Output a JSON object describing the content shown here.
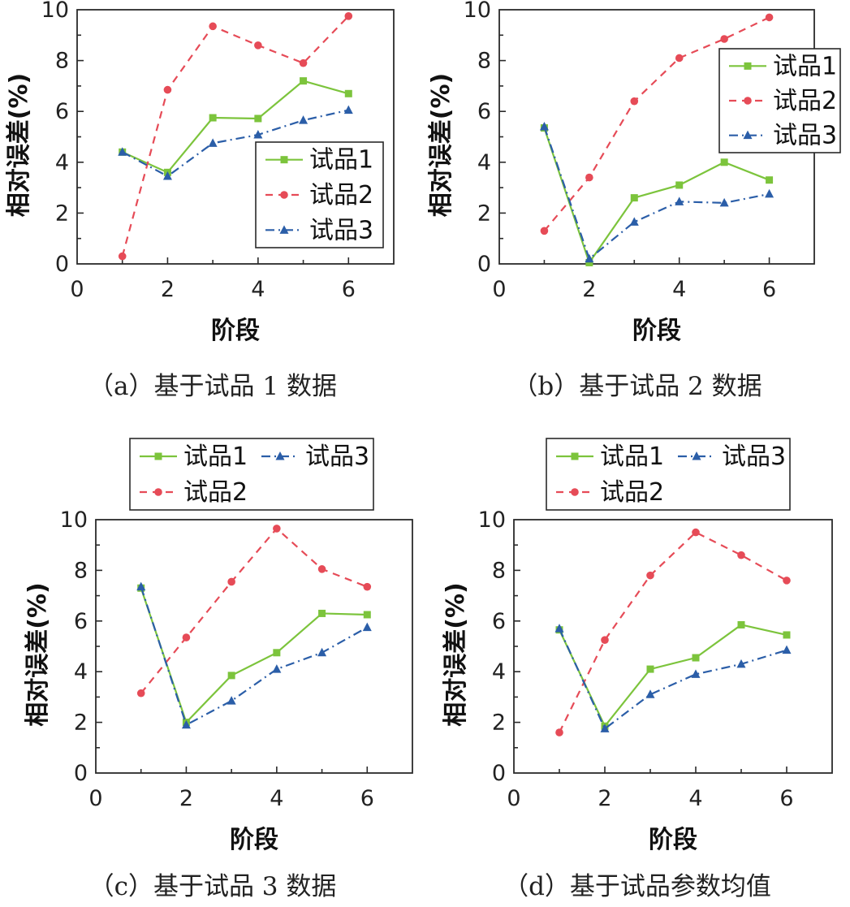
{
  "chart_data": [
    {
      "type": "line",
      "caption": "（a）基于试品 1 数据",
      "xlabel": "阶段",
      "ylabel": "相对误差(%)",
      "xlim": [
        0,
        7
      ],
      "ylim": [
        0,
        10
      ],
      "xticks": [
        0,
        2,
        4,
        6
      ],
      "yticks": [
        0,
        2,
        4,
        6,
        8,
        10
      ],
      "legend_position": "lower-right",
      "x": [
        1,
        2,
        3,
        4,
        5,
        6
      ],
      "series": [
        {
          "name": "试品1",
          "values": [
            4.4,
            3.6,
            5.75,
            5.72,
            7.2,
            6.7
          ]
        },
        {
          "name": "试品2",
          "values": [
            0.3,
            6.85,
            9.35,
            8.6,
            7.9,
            9.75
          ]
        },
        {
          "name": "试品3",
          "values": [
            4.4,
            3.45,
            4.75,
            5.08,
            5.65,
            6.05
          ]
        }
      ]
    },
    {
      "type": "line",
      "caption": "（b）基于试品 2 数据",
      "xlabel": "阶段",
      "ylabel": "相对误差(%)",
      "xlim": [
        0,
        7
      ],
      "ylim": [
        0,
        10
      ],
      "xticks": [
        0,
        2,
        4,
        6
      ],
      "yticks": [
        0,
        2,
        4,
        6,
        8,
        10
      ],
      "legend_position": "upper-right",
      "x": [
        1,
        2,
        3,
        4,
        5,
        6
      ],
      "series": [
        {
          "name": "试品1",
          "values": [
            5.35,
            0.05,
            2.6,
            3.1,
            4.0,
            3.3
          ]
        },
        {
          "name": "试品2",
          "values": [
            1.3,
            3.4,
            6.4,
            8.1,
            8.85,
            9.7
          ]
        },
        {
          "name": "试品3",
          "values": [
            5.4,
            0.2,
            1.65,
            2.45,
            2.4,
            2.75
          ]
        }
      ]
    },
    {
      "type": "line",
      "caption": "（c）基于试品 3 数据",
      "xlabel": "阶段",
      "ylabel": "相对误差(%)",
      "xlim": [
        0,
        7
      ],
      "ylim": [
        0,
        10
      ],
      "xticks": [
        0,
        2,
        4,
        6
      ],
      "yticks": [
        0,
        2,
        4,
        6,
        8,
        10
      ],
      "legend_position": "top",
      "x": [
        1,
        2,
        3,
        4,
        5,
        6
      ],
      "series": [
        {
          "name": "试品1",
          "values": [
            7.3,
            2.0,
            3.85,
            4.75,
            6.3,
            6.25
          ]
        },
        {
          "name": "试品2",
          "values": [
            3.15,
            5.35,
            7.55,
            9.65,
            8.05,
            7.35
          ]
        },
        {
          "name": "试品3",
          "values": [
            7.35,
            1.9,
            2.85,
            4.1,
            4.75,
            5.75
          ]
        }
      ]
    },
    {
      "type": "line",
      "caption": "（d）基于试品参数均值",
      "xlabel": "阶段",
      "ylabel": "相对误差(%)",
      "xlim": [
        0,
        7
      ],
      "ylim": [
        0,
        10
      ],
      "xticks": [
        0,
        2,
        4,
        6
      ],
      "yticks": [
        0,
        2,
        4,
        6,
        8,
        10
      ],
      "legend_position": "top",
      "x": [
        1,
        2,
        3,
        4,
        5,
        6
      ],
      "series": [
        {
          "name": "试品1",
          "values": [
            5.65,
            1.85,
            4.1,
            4.55,
            5.85,
            5.45
          ]
        },
        {
          "name": "试品2",
          "values": [
            1.6,
            5.25,
            7.8,
            9.5,
            8.6,
            7.6
          ]
        },
        {
          "name": "试品3",
          "values": [
            5.7,
            1.75,
            3.1,
            3.9,
            4.3,
            4.85
          ]
        }
      ]
    }
  ],
  "styles": {
    "series": [
      {
        "color": "#7cc43c",
        "marker": "square",
        "dash": ""
      },
      {
        "color": "#e64b57",
        "marker": "circle",
        "dash": "9,7"
      },
      {
        "color": "#2b5ea8",
        "marker": "triangle",
        "dash": "11,5,2,5"
      }
    ]
  }
}
